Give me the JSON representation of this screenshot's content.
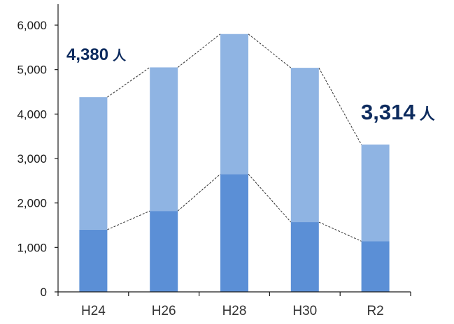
{
  "chart_data": {
    "type": "bar",
    "stacked": true,
    "categories": [
      "H24",
      "H26",
      "H28",
      "H30",
      "R2"
    ],
    "series": [
      {
        "values": [
          1400,
          1820,
          2650,
          1570,
          1140
        ],
        "color": "#5b8fd6"
      },
      {
        "values": [
          2980,
          3230,
          3150,
          3470,
          2174
        ],
        "color": "#8fb4e3"
      }
    ],
    "totals": [
      4380,
      5050,
      5800,
      5040,
      3314
    ],
    "ylim": [
      0,
      6000
    ],
    "yticks": [
      0,
      1000,
      2000,
      3000,
      4000,
      5000,
      6000
    ],
    "ytick_labels": [
      "0",
      "1,000",
      "2,000",
      "3,000",
      "4,000",
      "5,000",
      "6,000"
    ],
    "connector_lines": "dashed",
    "grid": false,
    "title": "",
    "xlabel": "",
    "ylabel": "",
    "annotations": [
      {
        "category": "H24",
        "value": "4,380",
        "unit": "人"
      },
      {
        "category": "R2",
        "value": "3,314",
        "unit": "人"
      }
    ]
  }
}
